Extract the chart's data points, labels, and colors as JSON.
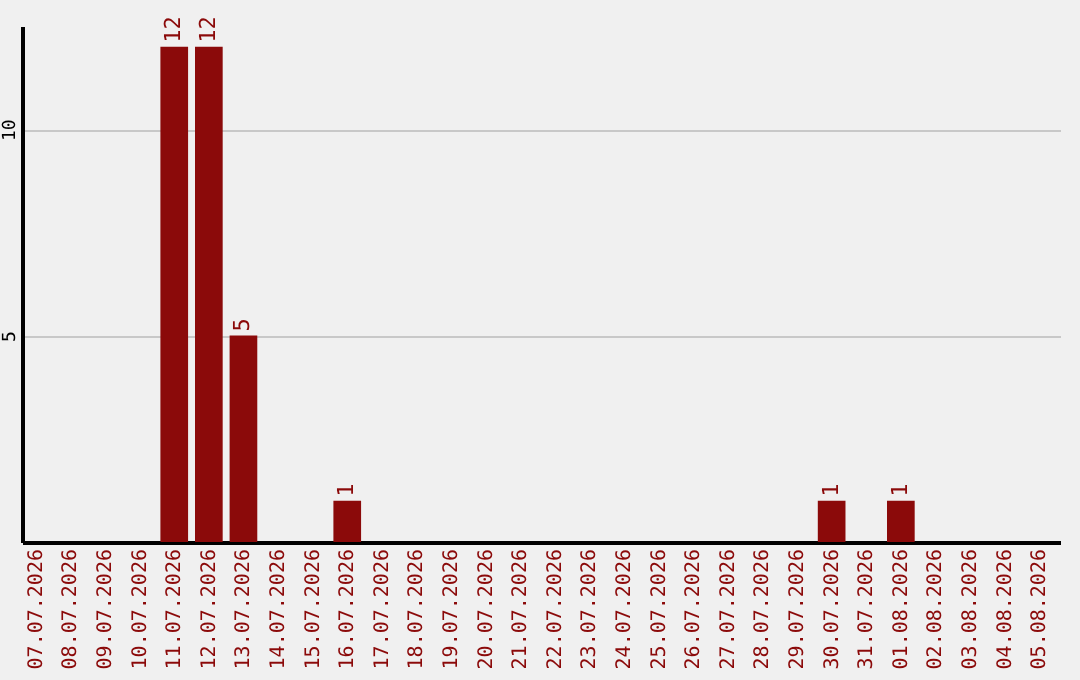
{
  "chart_data": {
    "type": "bar",
    "categories": [
      "07.07.2026",
      "08.07.2026",
      "09.07.2026",
      "10.07.2026",
      "11.07.2026",
      "12.07.2026",
      "13.07.2026",
      "14.07.2026",
      "15.07.2026",
      "16.07.2026",
      "17.07.2026",
      "18.07.2026",
      "19.07.2026",
      "20.07.2026",
      "21.07.2026",
      "22.07.2026",
      "23.07.2026",
      "24.07.2026",
      "25.07.2026",
      "26.07.2026",
      "27.07.2026",
      "28.07.2026",
      "29.07.2026",
      "30.07.2026",
      "31.07.2026",
      "01.08.2026",
      "02.08.2026",
      "03.08.2026",
      "04.08.2026",
      "05.08.2026"
    ],
    "values": [
      0,
      0,
      0,
      0,
      12,
      12,
      5,
      0,
      0,
      1,
      0,
      0,
      0,
      0,
      0,
      0,
      0,
      0,
      0,
      0,
      0,
      0,
      0,
      1,
      0,
      1,
      0,
      0,
      0,
      0
    ],
    "value_labels": [
      null,
      null,
      null,
      null,
      "12",
      "12",
      "5",
      null,
      null,
      "1",
      null,
      null,
      null,
      null,
      null,
      null,
      null,
      null,
      null,
      null,
      null,
      null,
      null,
      "1",
      null,
      "1",
      null,
      null,
      null,
      null
    ],
    "color": "#8b0a0a",
    "ylim": [
      0,
      12.5
    ],
    "yticks": [
      5,
      10
    ],
    "grid": "y"
  }
}
